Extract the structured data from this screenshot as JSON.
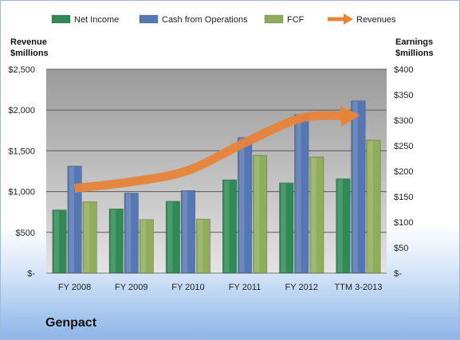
{
  "company": "Genpact",
  "colors": {
    "net_income": "#2f8a55",
    "cash_from_operations": "#5577b3",
    "fcf": "#8fad5a",
    "revenues": "#e8843a",
    "plot_bg_top": "#9a9a9a",
    "plot_bg_bottom": "#e4e4e4"
  },
  "chart_data": {
    "type": "bar",
    "categories": [
      "FY 2008",
      "FY 2009",
      "FY 2010",
      "FY 2011",
      "FY 2012",
      "TTM 3-2013"
    ],
    "series": [
      {
        "name": "Net Income",
        "axis": "right",
        "values": [
          124,
          126,
          141,
          183,
          177,
          185
        ]
      },
      {
        "name": "Cash from Operations",
        "axis": "right",
        "values": [
          210,
          157,
          162,
          266,
          311,
          338
        ]
      },
      {
        "name": "FCF",
        "axis": "right",
        "values": [
          140,
          105,
          106,
          231,
          228,
          261
        ]
      },
      {
        "name": "Revenues",
        "type": "line",
        "style": "arrow",
        "axis": "left",
        "values": [
          1041,
          1120,
          1260,
          1600,
          1902,
          1935
        ]
      }
    ],
    "left_axis": {
      "title": [
        "Revenue",
        "$millions"
      ],
      "ylim": [
        0,
        2500
      ],
      "ticks": [
        0,
        500,
        1000,
        1500,
        2000,
        2500
      ],
      "tick_labels": [
        "$-",
        "$500",
        "$1,000",
        "$1,500",
        "$2,000",
        "$2,500"
      ]
    },
    "right_axis": {
      "title": [
        "Earnings",
        "$millions"
      ],
      "ylim": [
        0,
        400
      ],
      "ticks": [
        0,
        50,
        100,
        150,
        200,
        250,
        300,
        350,
        400
      ],
      "tick_labels": [
        "$-",
        "$50",
        "$100",
        "$150",
        "$200",
        "$250",
        "$300",
        "$350",
        "$400"
      ]
    },
    "grid": true,
    "legend_position": "top"
  }
}
